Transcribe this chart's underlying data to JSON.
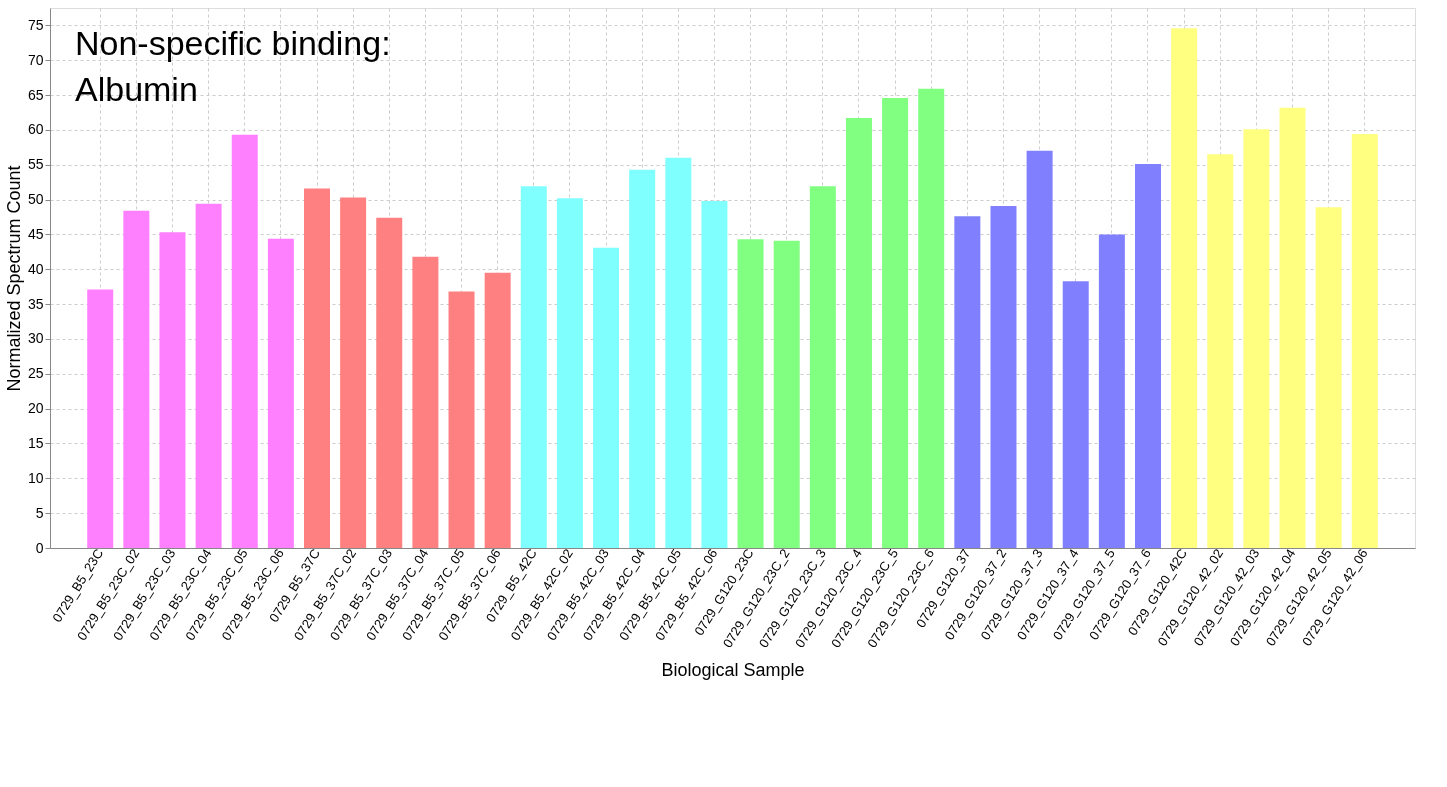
{
  "chart_data": {
    "type": "bar",
    "xlabel": "Biological Sample",
    "ylabel": "Normalized Spectrum Count",
    "annotations": [
      "Non-specific binding:\nAlbumin"
    ],
    "categories": [
      "0729_B5_23C",
      "0729_B5_23C_02",
      "0729_B5_23C_03",
      "0729_B5_23C_04",
      "0729_B5_23C_05",
      "0729_B5_23C_06",
      "0729_B5_37C",
      "0729_B5_37C_02",
      "0729_B5_37C_03",
      "0729_B5_37C_04",
      "0729_B5_37C_05",
      "0729_B5_37C_06",
      "0729_B5_42C",
      "0729_B5_42C_02",
      "0729_B5_42C_03",
      "0729_B5_42C_04",
      "0729_B5_42C_05",
      "0729_B5_42C_06",
      "0729_G120_23C",
      "0729_G120_23C_2",
      "0729_G120_23C_3",
      "0729_G120_23C_4",
      "0729_G120_23C_5",
      "0729_G120_23C_6",
      "0729_G120_37",
      "0729_G120_37_2",
      "0729_G120_37_3",
      "0729_G120_37_4",
      "0729_G120_37_5",
      "0729_G120_37_6",
      "0729_G120_42C",
      "0729_G120_42_02",
      "0729_G120_42_03",
      "0729_G120_42_04",
      "0729_G120_42_05",
      "0729_G120_42_06"
    ],
    "series": [
      {
        "color": "#ff8080",
        "values": [
          null,
          null,
          null,
          null,
          null,
          null,
          51.6,
          50.3,
          47.4,
          41.8,
          36.8,
          39.5,
          null,
          null,
          null,
          null,
          null,
          null,
          null,
          null,
          null,
          null,
          null,
          null,
          null,
          null,
          null,
          null,
          null,
          null,
          null,
          null,
          null,
          null,
          null,
          null
        ]
      },
      {
        "color": "#8080ff",
        "values": [
          null,
          null,
          null,
          null,
          null,
          null,
          null,
          null,
          null,
          null,
          null,
          null,
          null,
          null,
          null,
          null,
          null,
          null,
          null,
          null,
          null,
          null,
          null,
          null,
          47.6,
          49.1,
          57.0,
          38.3,
          45.0,
          55.1,
          null,
          null,
          null,
          null,
          null,
          null
        ]
      },
      {
        "color": "#80ff80",
        "values": [
          null,
          null,
          null,
          null,
          null,
          null,
          null,
          null,
          null,
          null,
          null,
          null,
          null,
          null,
          null,
          null,
          null,
          null,
          44.3,
          44.1,
          51.9,
          61.7,
          64.6,
          65.9,
          null,
          null,
          null,
          null,
          null,
          null,
          null,
          null,
          null,
          null,
          null,
          null
        ]
      },
      {
        "color": "#ffff80",
        "values": [
          null,
          null,
          null,
          null,
          null,
          null,
          null,
          null,
          null,
          null,
          null,
          null,
          null,
          null,
          null,
          null,
          null,
          null,
          null,
          null,
          null,
          null,
          null,
          null,
          null,
          null,
          null,
          null,
          null,
          null,
          74.6,
          56.5,
          60.1,
          63.2,
          48.9,
          59.4
        ]
      },
      {
        "color": "#ff80ff",
        "values": [
          37.1,
          48.4,
          45.3,
          49.4,
          59.3,
          44.4,
          null,
          null,
          null,
          null,
          null,
          null,
          null,
          null,
          null,
          null,
          null,
          null,
          null,
          null,
          null,
          null,
          null,
          null,
          null,
          null,
          null,
          null,
          null,
          null,
          null,
          null,
          null,
          null,
          null,
          null
        ]
      },
      {
        "color": "#80ffff",
        "values": [
          null,
          null,
          null,
          null,
          null,
          null,
          null,
          null,
          null,
          null,
          null,
          null,
          51.9,
          50.2,
          43.1,
          54.3,
          56.0,
          49.8,
          null,
          null,
          null,
          null,
          null,
          null,
          null,
          null,
          null,
          null,
          null,
          null,
          null,
          null,
          null,
          null,
          null,
          null
        ]
      }
    ],
    "ylim": [
      0,
      77.5
    ],
    "yticks": [
      0,
      5,
      10,
      15,
      20,
      25,
      30,
      35,
      40,
      45,
      50,
      55,
      60,
      65,
      70,
      75
    ],
    "grid": true
  }
}
